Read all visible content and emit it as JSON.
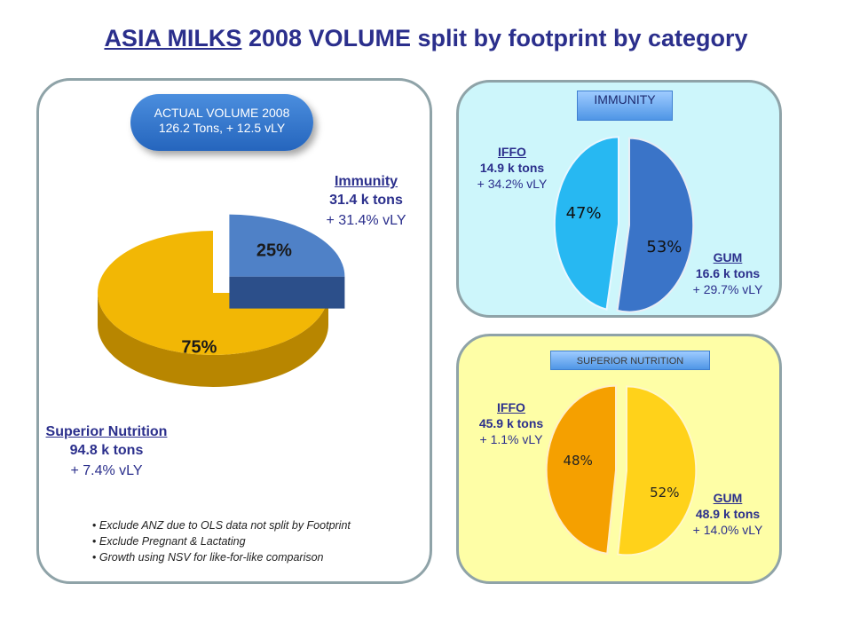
{
  "title": {
    "part1": "ASIA MILKS",
    "part2": " 2008 VOLUME split by footprint by category"
  },
  "actual_volume": {
    "line1": "ACTUAL VOLUME 2008",
    "line2": "126.2 Tons, + 12.5 vLY"
  },
  "tags": {
    "immunity": "IMMUNITY",
    "superior": "SUPERIOR NUTRITION"
  },
  "labels": {
    "immunity": {
      "name": "Immunity",
      "volume": "31.4 k tons",
      "growth": "+ 31.4% vLY"
    },
    "superior": {
      "name": "Superior Nutrition",
      "volume": "94.8 k tons",
      "growth": "+ 7.4% vLY"
    },
    "imm_iffo": {
      "name": "IFFO",
      "volume": "14.9 k tons",
      "growth": "+ 34.2% vLY"
    },
    "imm_gum": {
      "name": "GUM",
      "volume": "16.6 k tons",
      "growth": "+ 29.7% vLY"
    },
    "sn_iffo": {
      "name": "IFFO",
      "volume": "45.9 k tons",
      "growth": "+ 1.1% vLY"
    },
    "sn_gum": {
      "name": "GUM",
      "volume": "48.9 k tons",
      "growth": "+ 14.0% vLY"
    }
  },
  "notes": [
    "Exclude ANZ due to OLS data not split by Footprint",
    "Exclude Pregnant & Lactating",
    "Growth using NSV for like-for-like comparison"
  ],
  "colors": {
    "immunity": "#4f81c7",
    "superior": "#f2b705",
    "imm_iffo": "#27b8f2",
    "imm_gum": "#3a74c8",
    "sn_iffo": "#f5a000",
    "sn_gum": "#ffd21a"
  },
  "chart_data": [
    {
      "type": "pie",
      "title": "",
      "slices": [
        {
          "label": "Immunity",
          "value": 25,
          "text": "25%"
        },
        {
          "label": "Superior Nutrition",
          "value": 75,
          "text": "75%"
        }
      ]
    },
    {
      "type": "pie",
      "title": "",
      "slices": [
        {
          "label": "GUM",
          "value": 53,
          "text": "53%"
        },
        {
          "label": "IFFO",
          "value": 47,
          "text": "47%"
        }
      ]
    },
    {
      "type": "pie",
      "title": "",
      "slices": [
        {
          "label": "GUM",
          "value": 52,
          "text": "52%"
        },
        {
          "label": "IFFO",
          "value": 48,
          "text": "48%"
        }
      ]
    }
  ]
}
